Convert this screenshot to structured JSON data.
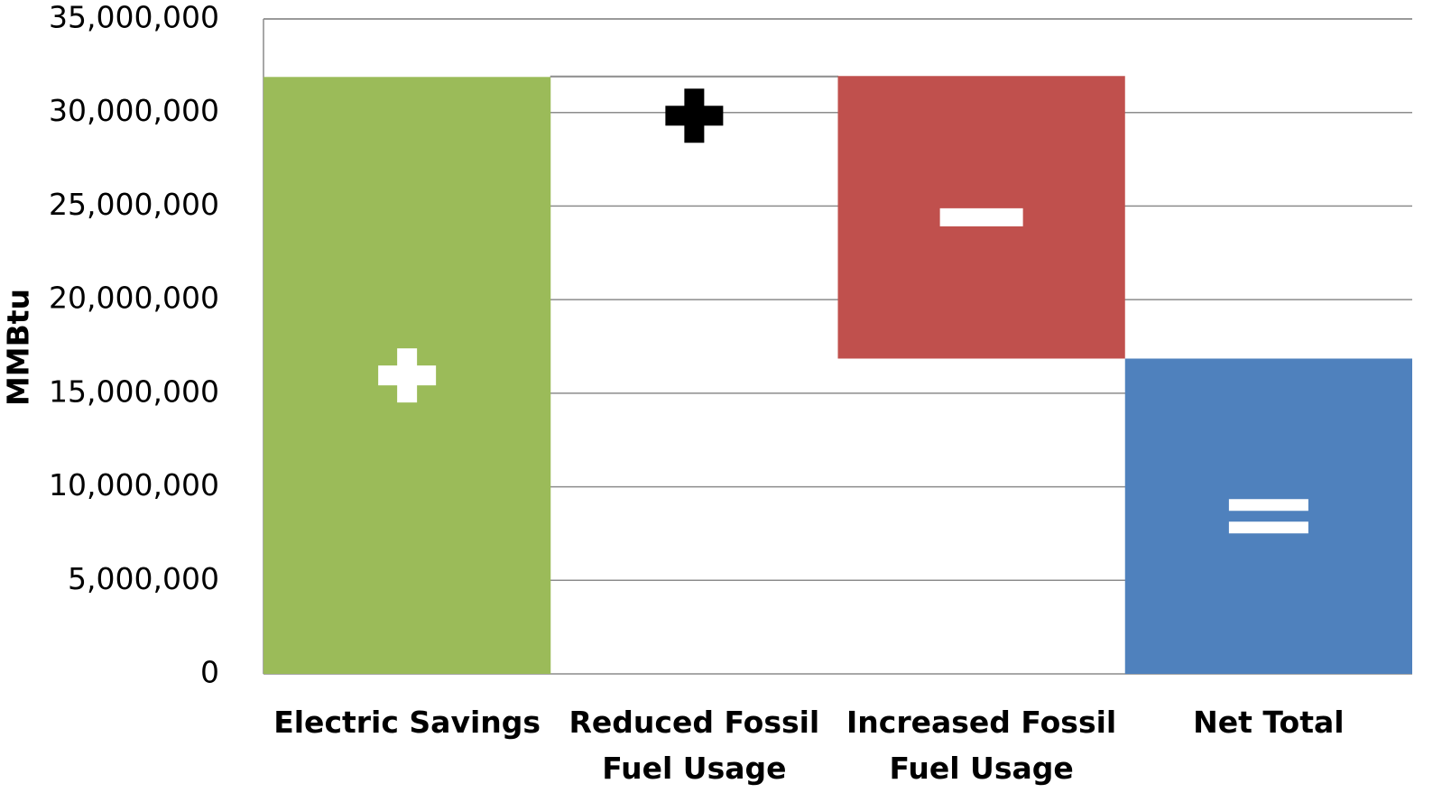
{
  "chart_data": {
    "type": "waterfall",
    "y_label": "MMBtu",
    "categories": [
      "Electric Savings",
      "Reduced Fossil Fuel Usage",
      "Increased Fossil Fuel Usage",
      "Net Total"
    ],
    "values": [
      31900000,
      50000,
      -15100000,
      16850000
    ],
    "is_total": [
      false,
      false,
      false,
      true
    ],
    "colors": [
      "#9bbb59",
      "#ffffff",
      "#c0504d",
      "#4f81bd"
    ],
    "ylim": [
      0,
      35000000
    ],
    "yticks": [
      0,
      {
        "value": 5000000,
        "label": "5,000,000"
      },
      {
        "value": 10000000,
        "label": "10,000,000"
      },
      {
        "value": 15000000,
        "label": "15,000,000"
      },
      {
        "value": 20000000,
        "label": "20,000,000"
      },
      {
        "value": 25000000,
        "label": "25,000,000"
      },
      {
        "value": 30000000,
        "label": "30,000,000"
      },
      {
        "value": 35000000,
        "label": "35,000,000"
      }
    ],
    "grid": true
  }
}
